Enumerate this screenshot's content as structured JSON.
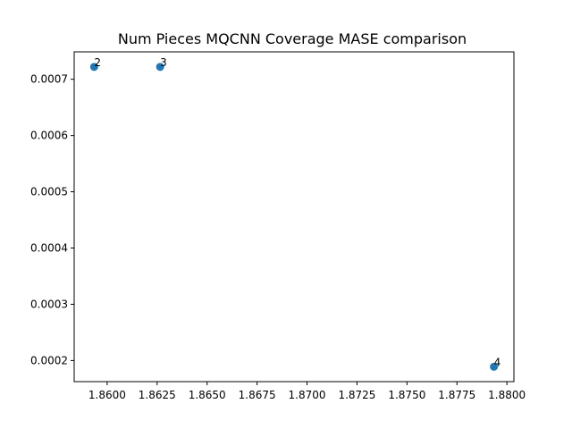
{
  "chart_data": {
    "type": "scatter",
    "title": "Num Pieces MQCNN Coverage MASE comparison",
    "xlabel": "",
    "ylabel": "",
    "xlim": [
      1.85835,
      1.88035
    ],
    "ylim": [
      0.0001625,
      0.00074875
    ],
    "x_ticks": [
      "1.8600",
      "1.8625",
      "1.8650",
      "1.8675",
      "1.8700",
      "1.8725",
      "1.8750",
      "1.8775",
      "1.8800"
    ],
    "x_tick_values": [
      1.86,
      1.8625,
      1.865,
      1.8675,
      1.87,
      1.8725,
      1.875,
      1.8775,
      1.88
    ],
    "y_ticks": [
      "0.0002",
      "0.0003",
      "0.0004",
      "0.0005",
      "0.0006",
      "0.0007"
    ],
    "y_tick_values": [
      0.0002,
      0.0003,
      0.0004,
      0.0005,
      0.0006,
      0.0007
    ],
    "grid": false,
    "marker_color": "#1f77b4",
    "points": [
      {
        "label": "2",
        "x": 1.85935,
        "y": 0.000722
      },
      {
        "label": "3",
        "x": 1.86265,
        "y": 0.000722
      },
      {
        "label": "4",
        "x": 1.87935,
        "y": 0.000189
      }
    ]
  }
}
